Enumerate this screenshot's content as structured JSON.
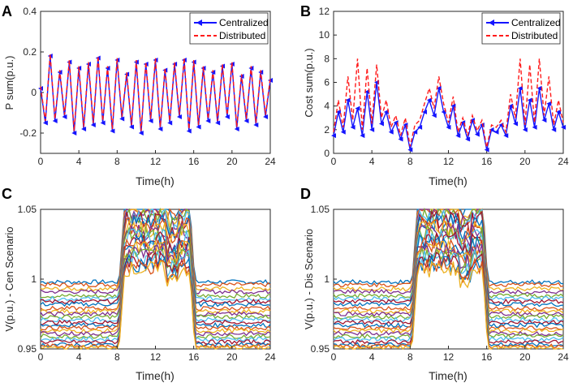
{
  "chart_data": [
    {
      "panel": "A",
      "type": "line",
      "xlabel": "Time(h)",
      "ylabel": "P sum(p.u.)",
      "xlim": [
        0,
        24
      ],
      "ylim": [
        -0.3,
        0.4
      ],
      "xticks": [
        "0",
        "4",
        "8",
        "12",
        "16",
        "20",
        "24"
      ],
      "yticks": [
        "-0.2",
        "0",
        "0.2",
        "0.4"
      ],
      "legend": {
        "position": "top-right",
        "entries": [
          "Centralized",
          "Distributed"
        ]
      },
      "series": [
        {
          "name": "Centralized",
          "style": "blue solid with left-pointing triangle markers",
          "x": [
            0,
            0.5,
            1,
            1.5,
            2,
            2.5,
            3,
            3.5,
            4,
            4.5,
            5,
            5.5,
            6,
            6.5,
            7,
            7.5,
            8,
            8.5,
            9,
            9.5,
            10,
            10.5,
            11,
            11.5,
            12,
            12.5,
            13,
            13.5,
            14,
            14.5,
            15,
            15.5,
            16,
            16.5,
            17,
            17.5,
            18,
            18.5,
            19,
            19.5,
            20,
            20.5,
            21,
            21.5,
            22,
            22.5,
            23,
            23.5,
            24
          ],
          "y": [
            0.02,
            -0.15,
            0.18,
            -0.14,
            0.1,
            -0.12,
            0.15,
            -0.2,
            0.12,
            -0.18,
            0.14,
            -0.16,
            0.17,
            -0.15,
            0.12,
            -0.19,
            0.16,
            -0.13,
            0.09,
            -0.17,
            0.15,
            -0.2,
            0.14,
            -0.14,
            0.16,
            -0.18,
            0.11,
            -0.15,
            0.14,
            -0.12,
            0.16,
            -0.19,
            0.15,
            -0.17,
            0.12,
            -0.14,
            0.1,
            -0.15,
            0.13,
            -0.12,
            0.14,
            -0.18,
            0.08,
            -0.14,
            0.12,
            -0.16,
            0.1,
            -0.12,
            0.06
          ]
        },
        {
          "name": "Distributed",
          "style": "red dashed",
          "x": [
            0,
            0.5,
            1,
            1.5,
            2,
            2.5,
            3,
            3.5,
            4,
            4.5,
            5,
            5.5,
            6,
            6.5,
            7,
            7.5,
            8,
            8.5,
            9,
            9.5,
            10,
            10.5,
            11,
            11.5,
            12,
            12.5,
            13,
            13.5,
            14,
            14.5,
            15,
            15.5,
            16,
            16.5,
            17,
            17.5,
            18,
            18.5,
            19,
            19.5,
            20,
            20.5,
            21,
            21.5,
            22,
            22.5,
            23,
            23.5,
            24
          ],
          "y": [
            0.03,
            -0.14,
            0.19,
            -0.13,
            0.11,
            -0.11,
            0.16,
            -0.19,
            0.13,
            -0.17,
            0.15,
            -0.15,
            0.18,
            -0.14,
            0.13,
            -0.18,
            0.17,
            -0.12,
            0.1,
            -0.16,
            0.16,
            -0.19,
            0.15,
            -0.13,
            0.17,
            -0.17,
            0.12,
            -0.14,
            0.15,
            -0.11,
            0.17,
            -0.18,
            0.16,
            -0.16,
            0.13,
            -0.13,
            0.11,
            -0.14,
            0.14,
            -0.11,
            0.15,
            -0.17,
            0.09,
            -0.13,
            0.13,
            -0.15,
            0.11,
            -0.11,
            0.07
          ]
        }
      ]
    },
    {
      "panel": "B",
      "type": "line",
      "xlabel": "Time(h)",
      "ylabel": "Cost sum(p.u.)",
      "xlim": [
        0,
        24
      ],
      "ylim": [
        0,
        12
      ],
      "xticks": [
        "0",
        "4",
        "8",
        "12",
        "16",
        "20",
        "24"
      ],
      "yticks": [
        "0",
        "2",
        "4",
        "6",
        "8",
        "10",
        "12"
      ],
      "legend": {
        "position": "top-right",
        "entries": [
          "Centralized",
          "Distributed"
        ]
      },
      "series": [
        {
          "name": "Centralized",
          "style": "blue solid with left-pointing triangle markers",
          "x": [
            0,
            0.5,
            1,
            1.5,
            2,
            2.5,
            3,
            3.5,
            4,
            4.5,
            5,
            5.5,
            6,
            6.5,
            7,
            7.5,
            8,
            8.5,
            9,
            9.5,
            10,
            10.5,
            11,
            11.5,
            12,
            12.5,
            13,
            13.5,
            14,
            14.5,
            15,
            15.5,
            16,
            16.5,
            17,
            17.5,
            18,
            18.5,
            19,
            19.5,
            20,
            20.5,
            21,
            21.5,
            22,
            22.5,
            23,
            23.5,
            24
          ],
          "y": [
            1.5,
            3.5,
            1.8,
            4.5,
            2.2,
            3.8,
            1.5,
            5.2,
            2,
            6,
            2.5,
            3.5,
            1.8,
            2.6,
            1.2,
            2.4,
            0.3,
            1.8,
            2.2,
            3.5,
            4.5,
            3.2,
            5.5,
            3.5,
            2.2,
            4,
            1.5,
            2.6,
            1.2,
            2.8,
            1.6,
            2.4,
            0.3,
            2,
            1.8,
            2.4,
            1.5,
            4,
            2.5,
            5.5,
            2,
            4.5,
            2.2,
            5.5,
            2.8,
            4.2,
            2,
            3.5,
            2.2
          ]
        },
        {
          "name": "Distributed",
          "style": "red dashed",
          "x": [
            0,
            0.5,
            1,
            1.5,
            2,
            2.5,
            3,
            3.5,
            4,
            4.5,
            5,
            5.5,
            6,
            6.5,
            7,
            7.5,
            8,
            8.5,
            9,
            9.5,
            10,
            10.5,
            11,
            11.5,
            12,
            12.5,
            13,
            13.5,
            14,
            14.5,
            15,
            15.5,
            16,
            16.5,
            17,
            17.5,
            18,
            18.5,
            19,
            19.5,
            20,
            20.5,
            21,
            21.5,
            22,
            22.5,
            23,
            23.5,
            24
          ],
          "y": [
            1.8,
            4.5,
            2.2,
            6.5,
            2.8,
            8,
            2,
            7.2,
            2.5,
            7.5,
            3,
            4.5,
            2.2,
            3.2,
            1.5,
            3,
            0.6,
            2.4,
            2.8,
            4.2,
            5.5,
            3.8,
            6.5,
            4.2,
            2.6,
            4.8,
            1.8,
            3,
            1.5,
            3.2,
            1.9,
            2.8,
            0.5,
            2.4,
            2.2,
            2.8,
            1.8,
            5,
            3,
            8,
            2.4,
            7.5,
            2.6,
            8,
            3.2,
            6.5,
            2.4,
            4.5,
            2.6
          ]
        }
      ]
    },
    {
      "panel": "C",
      "type": "line",
      "xlabel": "Time(h)",
      "ylabel": "V(p.u.) - Cen Scenario",
      "xlim": [
        0,
        24
      ],
      "ylim": [
        0.95,
        1.05
      ],
      "xticks": [
        "0",
        "4",
        "8",
        "12",
        "16",
        "20",
        "24"
      ],
      "yticks": [
        "0.95",
        "1",
        "1.05"
      ],
      "series_count": 24,
      "bus_levels_offpeak": [
        0.998,
        0.996,
        0.993,
        0.991,
        0.988,
        0.986,
        0.984,
        0.982,
        0.979,
        0.977,
        0.975,
        0.973,
        0.971,
        0.969,
        0.967,
        0.965,
        0.963,
        0.961,
        0.959,
        0.957,
        0.955,
        0.953,
        0.952,
        0.951
      ],
      "peak_window_h": [
        8.2,
        15.6
      ]
    },
    {
      "panel": "D",
      "type": "line",
      "xlabel": "Time(h)",
      "ylabel": "V(p.u.) - Dis Scenario",
      "xlim": [
        0,
        24
      ],
      "ylim": [
        0.95,
        1.05
      ],
      "xticks": [
        "0",
        "4",
        "8",
        "12",
        "16",
        "20",
        "24"
      ],
      "yticks": [
        "0.95",
        "1",
        "1.05"
      ],
      "series_count": 24,
      "bus_levels_offpeak": [
        0.998,
        0.996,
        0.993,
        0.991,
        0.988,
        0.986,
        0.984,
        0.982,
        0.979,
        0.977,
        0.975,
        0.973,
        0.971,
        0.969,
        0.967,
        0.965,
        0.963,
        0.961,
        0.959,
        0.957,
        0.955,
        0.953,
        0.952,
        0.951
      ],
      "peak_window_h": [
        8.2,
        15.6
      ]
    }
  ],
  "colors": {
    "centralized": "#1414ff",
    "distributed": "#ff1a1a",
    "voltage_palette": [
      "#0072bd",
      "#d95319",
      "#edb120",
      "#7e2f8e",
      "#77ac30",
      "#4dbeee",
      "#a2142f"
    ]
  }
}
